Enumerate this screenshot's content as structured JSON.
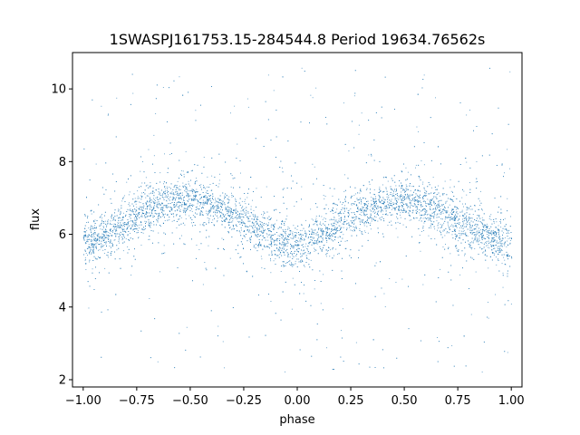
{
  "chart_data": {
    "type": "scatter",
    "title": "1SWASPJ161753.15-284544.8 Period 19634.76562s",
    "xlabel": "phase",
    "ylabel": "flux",
    "xlim": [
      -1.05,
      1.05
    ],
    "ylim": [
      1.8,
      11.0
    ],
    "x_ticks": [
      -1.0,
      -0.75,
      -0.5,
      -0.25,
      0.0,
      0.25,
      0.5,
      0.75,
      1.0
    ],
    "x_tick_labels": [
      "−1.00",
      "−0.75",
      "−0.50",
      "−0.25",
      "0.00",
      "0.25",
      "0.50",
      "0.75",
      "1.00"
    ],
    "y_ticks": [
      2,
      4,
      6,
      8,
      10
    ],
    "y_tick_labels": [
      "2",
      "4",
      "6",
      "8",
      "10"
    ],
    "grid": false,
    "marker_color": "#1f77b4",
    "series": [
      {
        "phase_range": [
          -1.0,
          1.0
        ],
        "trend": {
          "phase": [
            -1.0,
            -0.9,
            -0.8,
            -0.7,
            -0.6,
            -0.5,
            -0.4,
            -0.3,
            -0.2,
            -0.1,
            0.0,
            0.1,
            0.2,
            0.3,
            0.4,
            0.5,
            0.6,
            0.7,
            0.8,
            0.9,
            1.0
          ],
          "flux": [
            5.7,
            6.0,
            6.35,
            6.7,
            6.9,
            6.95,
            6.8,
            6.55,
            6.2,
            5.9,
            5.65,
            5.95,
            6.3,
            6.7,
            6.9,
            6.95,
            6.8,
            6.5,
            6.2,
            5.9,
            5.65
          ]
        },
        "core_spread": 0.3,
        "outlier_range": [
          2.2,
          10.6
        ]
      }
    ]
  }
}
